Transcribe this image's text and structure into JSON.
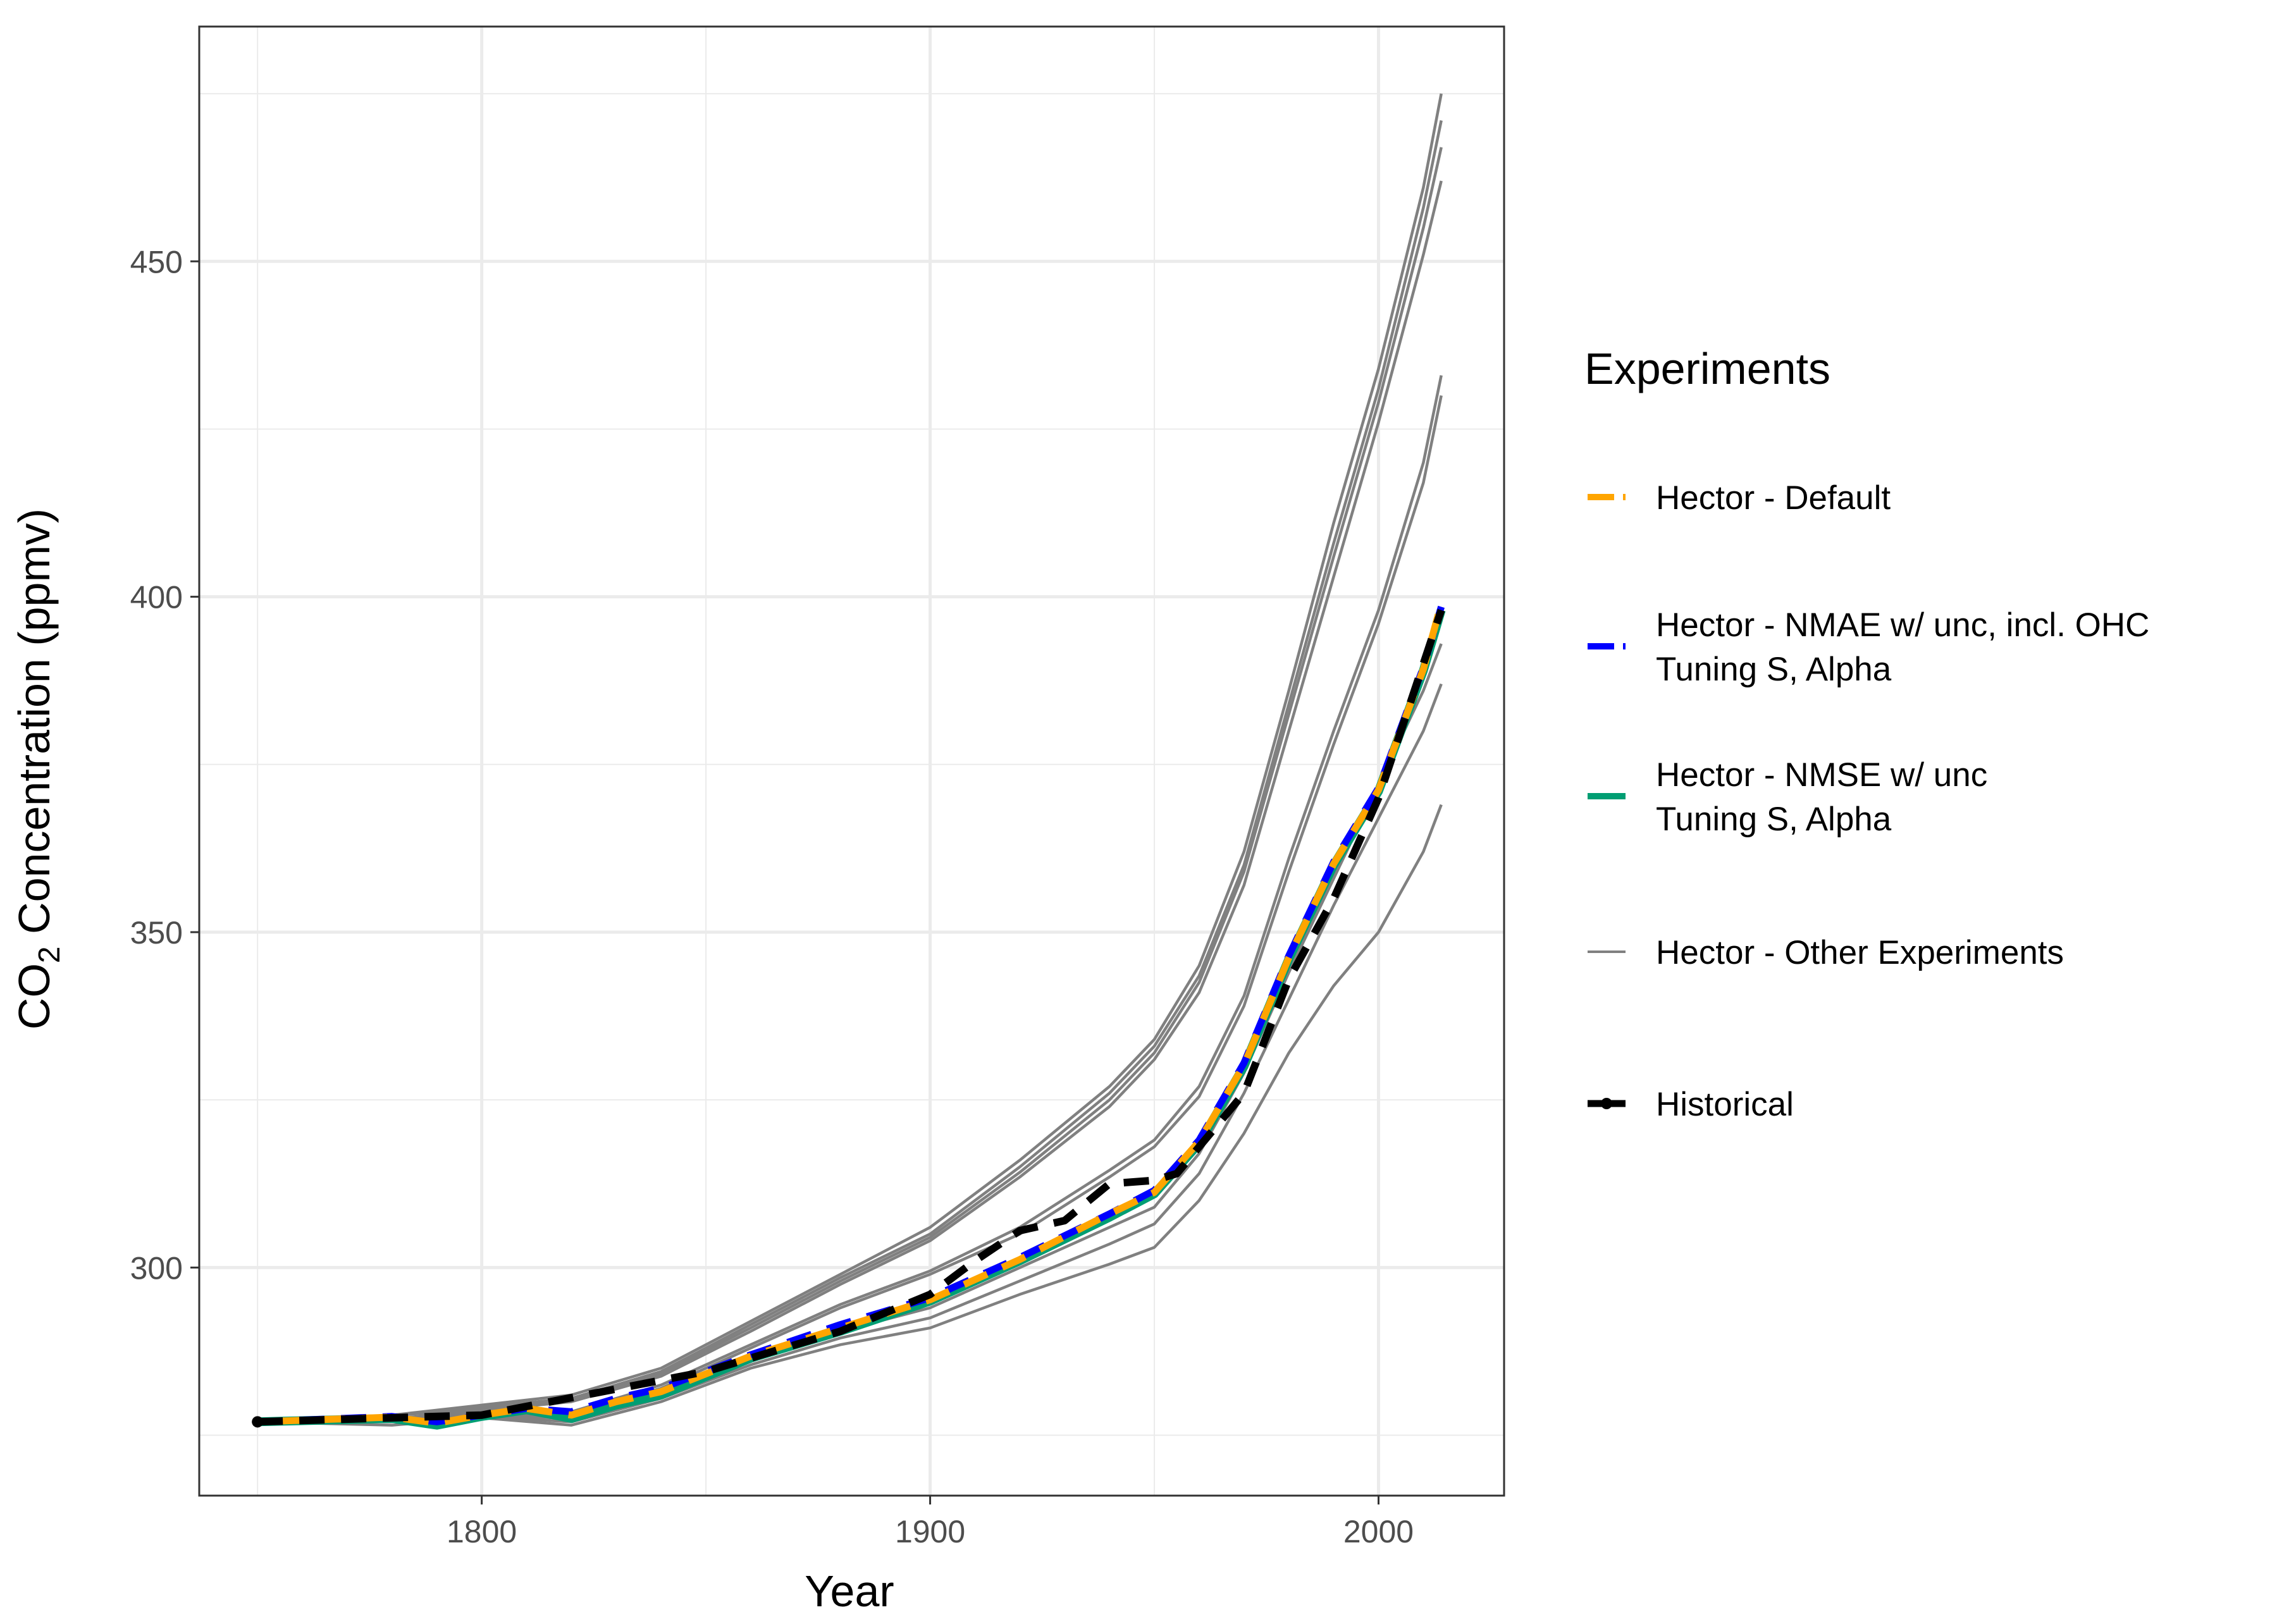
{
  "chart_data": {
    "type": "line",
    "xlabel": "Year",
    "ylabel_main": "CO",
    "ylabel_sub": "2",
    "ylabel_rest": " Concentration (ppmv)",
    "xlim": [
      1737,
      2028
    ],
    "ylim": [
      266,
      485
    ],
    "x_ticks": [
      1800,
      1900,
      2000
    ],
    "x_tick_labels": [
      "1800",
      "1900",
      "2000"
    ],
    "y_ticks": [
      300,
      350,
      400,
      450
    ],
    "y_tick_labels": [
      "300",
      "350",
      "400",
      "450"
    ],
    "grid": true,
    "legend": {
      "title": "Experiments",
      "placement": "right",
      "entries": [
        {
          "lines": [
            "Hector - Default"
          ],
          "color": "#FFA500",
          "style": "dashed-thick"
        },
        {
          "lines": [
            "Hector - NMAE w/ unc, incl. OHC",
            "Tuning S, Alpha"
          ],
          "color": "#0000FF",
          "style": "dashed-thick"
        },
        {
          "lines": [
            "Hector - NMSE w/ unc",
            "Tuning S, Alpha"
          ],
          "color": "#009E73",
          "style": "solid-thick"
        },
        {
          "lines": [
            "Hector - Other Experiments"
          ],
          "color": "#808080",
          "style": "solid-thin"
        },
        {
          "lines": [
            "Historical"
          ],
          "color": "#000000",
          "style": "dashed-point"
        }
      ]
    },
    "series": [
      {
        "key": "other-1",
        "color": "#808080",
        "x": [
          1750,
          1780,
          1800,
          1820,
          1840,
          1860,
          1880,
          1900,
          1920,
          1940,
          1950,
          1960,
          1970,
          1980,
          1990,
          2000,
          2010,
          2014
        ],
        "values": [
          277,
          278,
          279.5,
          281,
          285,
          292,
          299,
          306,
          316,
          327,
          334,
          345,
          362,
          386,
          411,
          434,
          461,
          475
        ]
      },
      {
        "key": "other-2",
        "color": "#808080",
        "x": [
          1750,
          1780,
          1800,
          1820,
          1840,
          1860,
          1880,
          1900,
          1920,
          1940,
          1950,
          1960,
          1970,
          1980,
          1990,
          2000,
          2010,
          2014
        ],
        "values": [
          277,
          278,
          279.2,
          280.5,
          284.5,
          291.5,
          298.5,
          305,
          315,
          326,
          333,
          343.5,
          360,
          384,
          408,
          431,
          458,
          471
        ]
      },
      {
        "key": "other-3",
        "color": "#808080",
        "x": [
          1750,
          1780,
          1800,
          1820,
          1840,
          1860,
          1880,
          1900,
          1920,
          1940,
          1950,
          1960,
          1970,
          1980,
          1990,
          2000,
          2010,
          2014
        ],
        "values": [
          277,
          278,
          279,
          280.3,
          284.2,
          291,
          298,
          304.5,
          314.2,
          325,
          332,
          342.5,
          359,
          382.5,
          406,
          429,
          455,
          467
        ]
      },
      {
        "key": "other-4",
        "color": "#808080",
        "x": [
          1750,
          1780,
          1800,
          1820,
          1840,
          1860,
          1880,
          1900,
          1920,
          1940,
          1950,
          1960,
          1970,
          1980,
          1990,
          2000,
          2010,
          2014
        ],
        "values": [
          277,
          278,
          278.7,
          280,
          283.8,
          290.5,
          297.5,
          304,
          313.5,
          324,
          331,
          341,
          357,
          380,
          403,
          426,
          451,
          462
        ]
      },
      {
        "key": "other-5",
        "color": "#808080",
        "x": [
          1750,
          1780,
          1800,
          1820,
          1840,
          1860,
          1880,
          1900,
          1920,
          1940,
          1950,
          1960,
          1970,
          1980,
          1990,
          2000,
          2010,
          2014
        ],
        "values": [
          277,
          277.5,
          278.5,
          278.5,
          282.5,
          288.5,
          294.5,
          299.5,
          306,
          314.5,
          319,
          327,
          340.5,
          361,
          380,
          398,
          420,
          433
        ]
      },
      {
        "key": "other-6",
        "color": "#808080",
        "x": [
          1750,
          1780,
          1800,
          1820,
          1840,
          1860,
          1880,
          1900,
          1920,
          1940,
          1950,
          1960,
          1970,
          1980,
          1990,
          2000,
          2010,
          2014
        ],
        "values": [
          277,
          277.3,
          278.2,
          278,
          282,
          288,
          294,
          299,
          305,
          313.5,
          318,
          325.5,
          339,
          359,
          378,
          396,
          417,
          430
        ]
      },
      {
        "key": "other-7",
        "color": "#808080",
        "x": [
          1750,
          1780,
          1800,
          1820,
          1840,
          1860,
          1880,
          1900,
          1920,
          1940,
          1950,
          1960,
          1970,
          1980,
          1990,
          2000,
          2010,
          2014
        ],
        "values": [
          277,
          277,
          278,
          277.5,
          281,
          286,
          290.5,
          294,
          300,
          306,
          309,
          317,
          329,
          344,
          358,
          372,
          386,
          393
        ]
      },
      {
        "key": "other-8",
        "color": "#808080",
        "x": [
          1750,
          1780,
          1800,
          1820,
          1840,
          1860,
          1880,
          1900,
          1920,
          1940,
          1950,
          1960,
          1970,
          1980,
          1990,
          2000,
          2010,
          2014
        ],
        "values": [
          277,
          277,
          277.8,
          277,
          280.5,
          285.5,
          289.5,
          292.5,
          298,
          303.5,
          306.5,
          314,
          326,
          340,
          354,
          367,
          380,
          387
        ]
      },
      {
        "key": "other-9",
        "color": "#808080",
        "x": [
          1750,
          1780,
          1800,
          1820,
          1840,
          1860,
          1880,
          1900,
          1920,
          1940,
          1950,
          1960,
          1970,
          1980,
          1990,
          2000,
          2010,
          2014
        ],
        "values": [
          277,
          276.5,
          277.6,
          276.5,
          280,
          285,
          288.5,
          291,
          296,
          300.5,
          303,
          310,
          320,
          332,
          342,
          350,
          362,
          369
        ]
      },
      {
        "key": "nmse",
        "color": "#009E73",
        "x": [
          1750,
          1780,
          1790,
          1800,
          1810,
          1820,
          1830,
          1840,
          1860,
          1880,
          1900,
          1920,
          1940,
          1950,
          1960,
          1970,
          1980,
          1990,
          2000,
          2010,
          2014
        ],
        "values": [
          277,
          277.5,
          276.5,
          277.8,
          278.8,
          277.5,
          279.5,
          281,
          286.5,
          290.5,
          295,
          301,
          307.5,
          311,
          318.5,
          330,
          346,
          360,
          371,
          389,
          398
        ]
      },
      {
        "key": "nmae",
        "color": "#0000FF",
        "x": [
          1750,
          1780,
          1790,
          1800,
          1810,
          1820,
          1830,
          1840,
          1860,
          1880,
          1900,
          1920,
          1940,
          1950,
          1960,
          1970,
          1980,
          1990,
          2000,
          2010,
          2014
        ],
        "values": [
          277,
          277.8,
          277,
          278,
          279,
          278.5,
          280.5,
          282,
          287,
          291.5,
          295.5,
          301.5,
          308,
          311.5,
          319,
          330.5,
          346.5,
          360.5,
          371.5,
          389.5,
          398.5
        ]
      },
      {
        "key": "default",
        "color": "#FFA500",
        "x": [
          1750,
          1780,
          1790,
          1800,
          1810,
          1820,
          1830,
          1840,
          1860,
          1880,
          1900,
          1920,
          1940,
          1950,
          1960,
          1970,
          1980,
          1990,
          2000,
          2010,
          2014
        ],
        "values": [
          277,
          277.7,
          276.8,
          278,
          279,
          278,
          280,
          281.5,
          286.8,
          291,
          295.2,
          301.2,
          308,
          311.2,
          318.8,
          330.2,
          346.2,
          360.2,
          371.2,
          389.2,
          399
        ]
      },
      {
        "key": "historical",
        "color": "#000000",
        "x": [
          1750,
          1800,
          1850,
          1880,
          1900,
          1910,
          1920,
          1930,
          1940,
          1950,
          1955,
          1960,
          1970,
          1980,
          1990,
          2000,
          2010,
          2014
        ],
        "values": [
          277,
          278,
          284.5,
          290.5,
          296,
          301,
          305.5,
          307,
          312.5,
          313,
          314,
          318,
          326,
          343,
          355,
          370,
          390,
          398
        ]
      }
    ]
  }
}
